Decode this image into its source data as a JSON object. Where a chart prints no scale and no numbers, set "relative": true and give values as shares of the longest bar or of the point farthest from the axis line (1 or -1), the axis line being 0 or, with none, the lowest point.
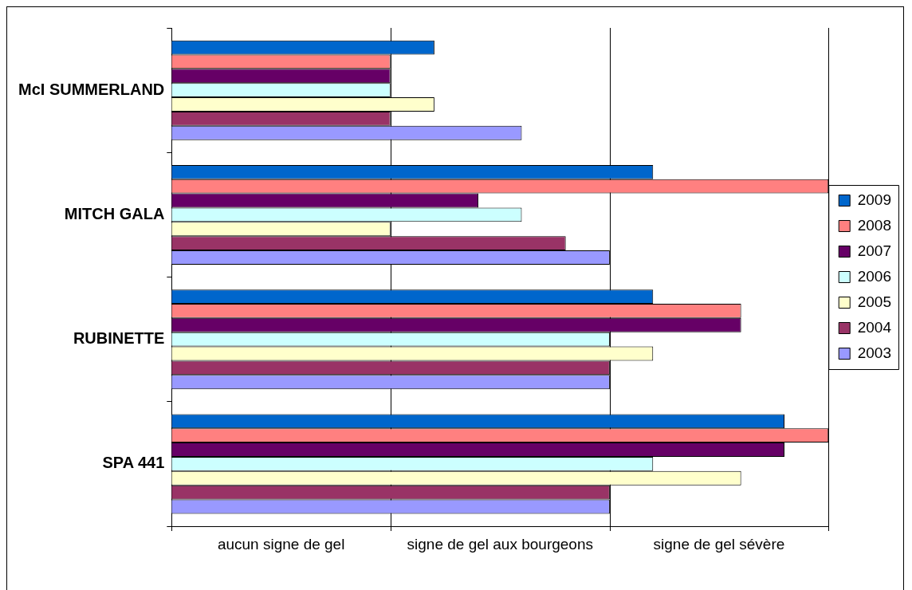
{
  "chart_data": {
    "type": "bar",
    "orientation": "horizontal",
    "relative": true,
    "categories": [
      "McI SUMMERLAND",
      "MITCH GALA",
      "RUBINETTE",
      "SPA 441"
    ],
    "series": [
      {
        "name": "2009",
        "color": "#0066cc",
        "values": [
          0.4,
          0.733,
          0.733,
          0.933
        ]
      },
      {
        "name": "2008",
        "color": "#ff8080",
        "values": [
          0.333,
          1,
          0.867,
          1
        ]
      },
      {
        "name": "2007",
        "color": "#660066",
        "values": [
          0.333,
          0.467,
          0.867,
          0.933
        ]
      },
      {
        "name": "2006",
        "color": "#ccffff",
        "values": [
          0.333,
          0.533,
          0.667,
          0.733
        ]
      },
      {
        "name": "2005",
        "color": "#ffffcc",
        "values": [
          0.4,
          0.333,
          0.733,
          0.867
        ]
      },
      {
        "name": "2004",
        "color": "#993366",
        "values": [
          0.333,
          0.6,
          0.667,
          0.667
        ]
      },
      {
        "name": "2003",
        "color": "#9999ff",
        "values": [
          0.533,
          0.667,
          0.667,
          0.667
        ]
      }
    ],
    "annotations": [
      "aucun signe de gel",
      "signe de gel aux bourgeons",
      "signe de gel sévère"
    ],
    "grid": "x",
    "legend": "right"
  }
}
